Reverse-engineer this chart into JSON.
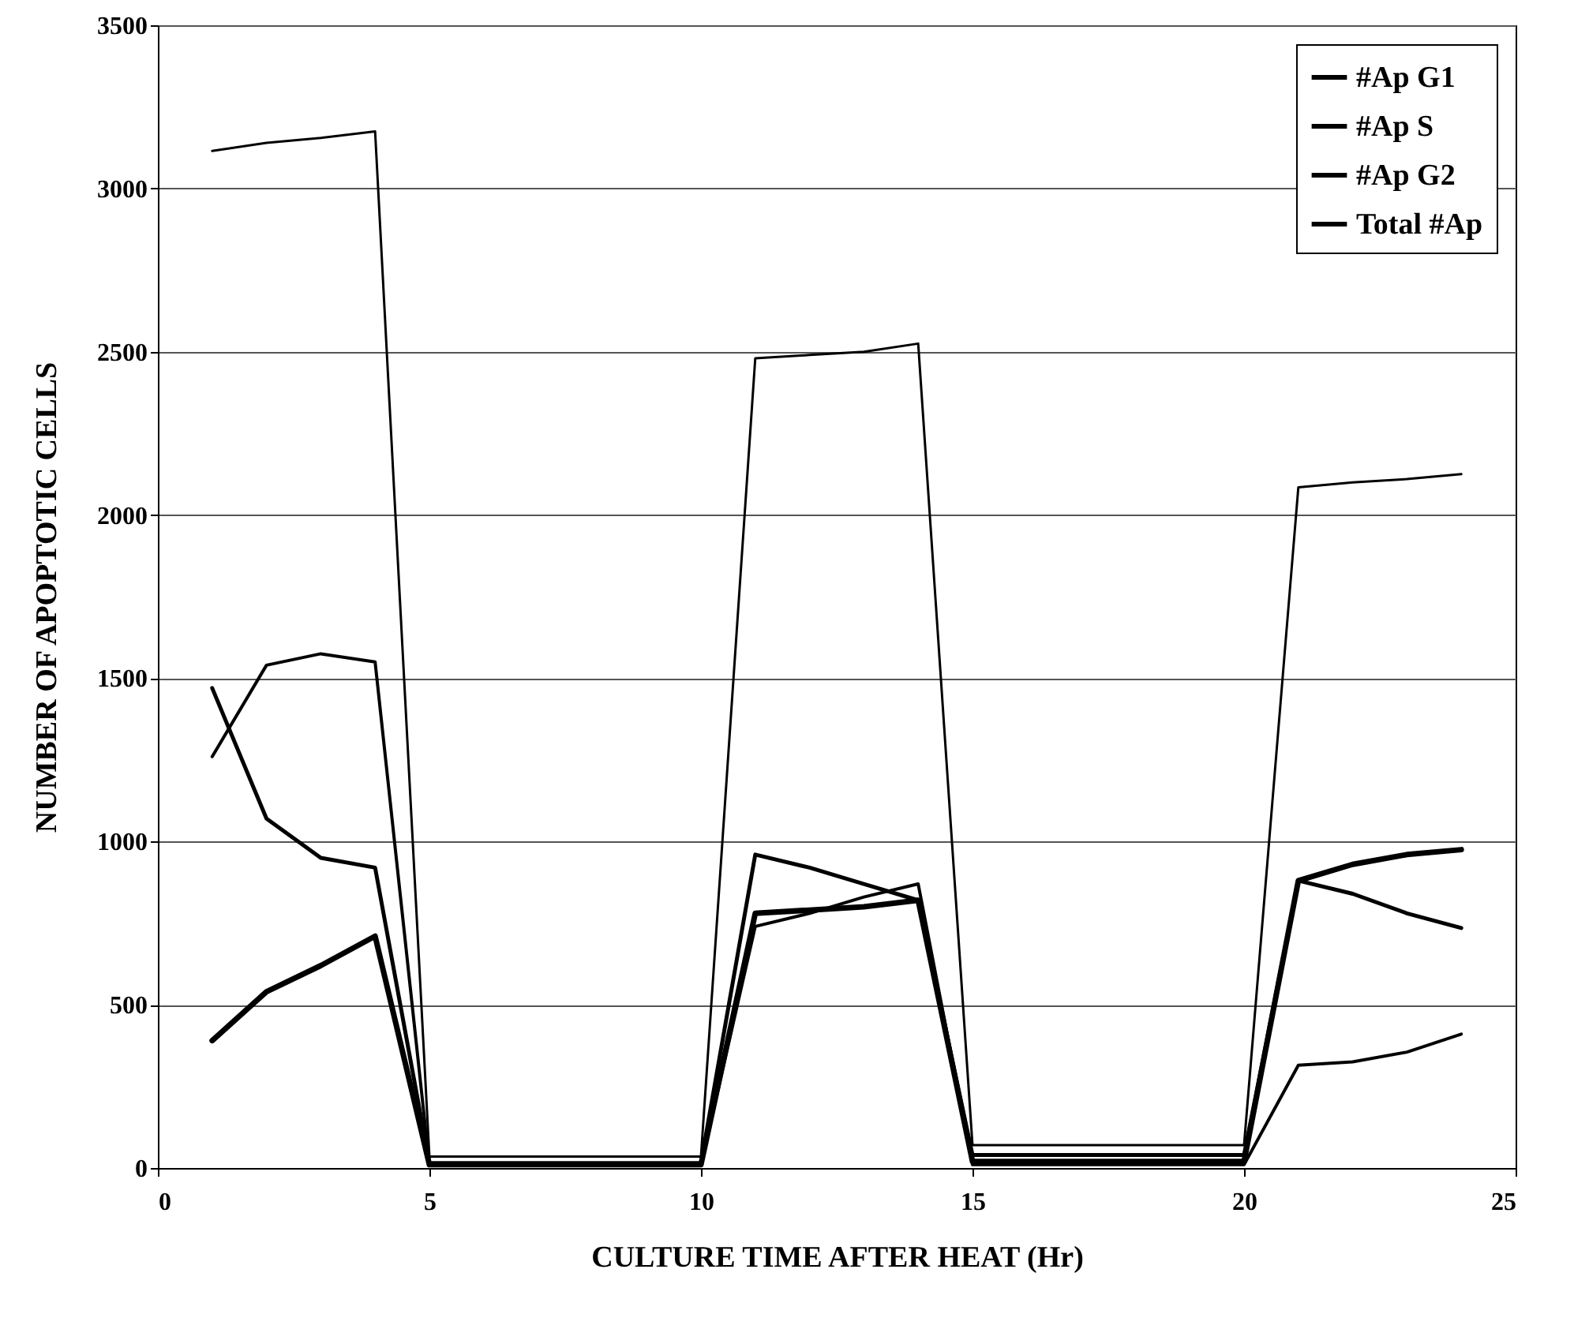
{
  "chart_data": {
    "type": "line",
    "xlabel": "CULTURE TIME AFTER HEAT (Hr)",
    "ylabel": "NUMBER OF APOPTOTIC CELLS",
    "x": [
      1,
      2,
      3,
      4,
      5,
      6,
      7,
      8,
      9,
      10,
      11,
      12,
      13,
      14,
      15,
      16,
      17,
      18,
      19,
      20,
      21,
      22,
      23,
      24
    ],
    "series": [
      {
        "name": "#Ap G1",
        "color": "#000000",
        "values": [
          390,
          540,
          620,
          710,
          10,
          10,
          10,
          10,
          10,
          10,
          780,
          790,
          800,
          820,
          20,
          20,
          20,
          20,
          20,
          20,
          880,
          930,
          960,
          975
        ]
      },
      {
        "name": "#Ap  S",
        "color": "#000000",
        "values": [
          1470,
          1070,
          950,
          920,
          15,
          15,
          15,
          15,
          15,
          15,
          960,
          920,
          870,
          820,
          40,
          40,
          40,
          40,
          40,
          40,
          880,
          840,
          780,
          735
        ]
      },
      {
        "name": "#Ap G2",
        "color": "#000000",
        "values": [
          1260,
          1540,
          1575,
          1550,
          10,
          10,
          10,
          10,
          10,
          10,
          740,
          780,
          830,
          870,
          10,
          10,
          10,
          10,
          10,
          10,
          315,
          325,
          355,
          410
        ]
      },
      {
        "name": "Total #Ap",
        "color": "#000000",
        "values": [
          3115,
          3140,
          3155,
          3175,
          35,
          35,
          35,
          35,
          35,
          35,
          2480,
          2490,
          2500,
          2525,
          70,
          70,
          70,
          70,
          70,
          70,
          2085,
          2100,
          2110,
          2125
        ]
      }
    ],
    "xlim": [
      0,
      25
    ],
    "xticks": [
      0,
      5,
      10,
      15,
      20,
      25
    ],
    "ylim": [
      0,
      3500
    ],
    "yticks": [
      0,
      500,
      1000,
      1500,
      2000,
      2500,
      3000,
      3500
    ],
    "grid": "y",
    "legend": "top right",
    "marker": "none",
    "line_style": "solid"
  }
}
